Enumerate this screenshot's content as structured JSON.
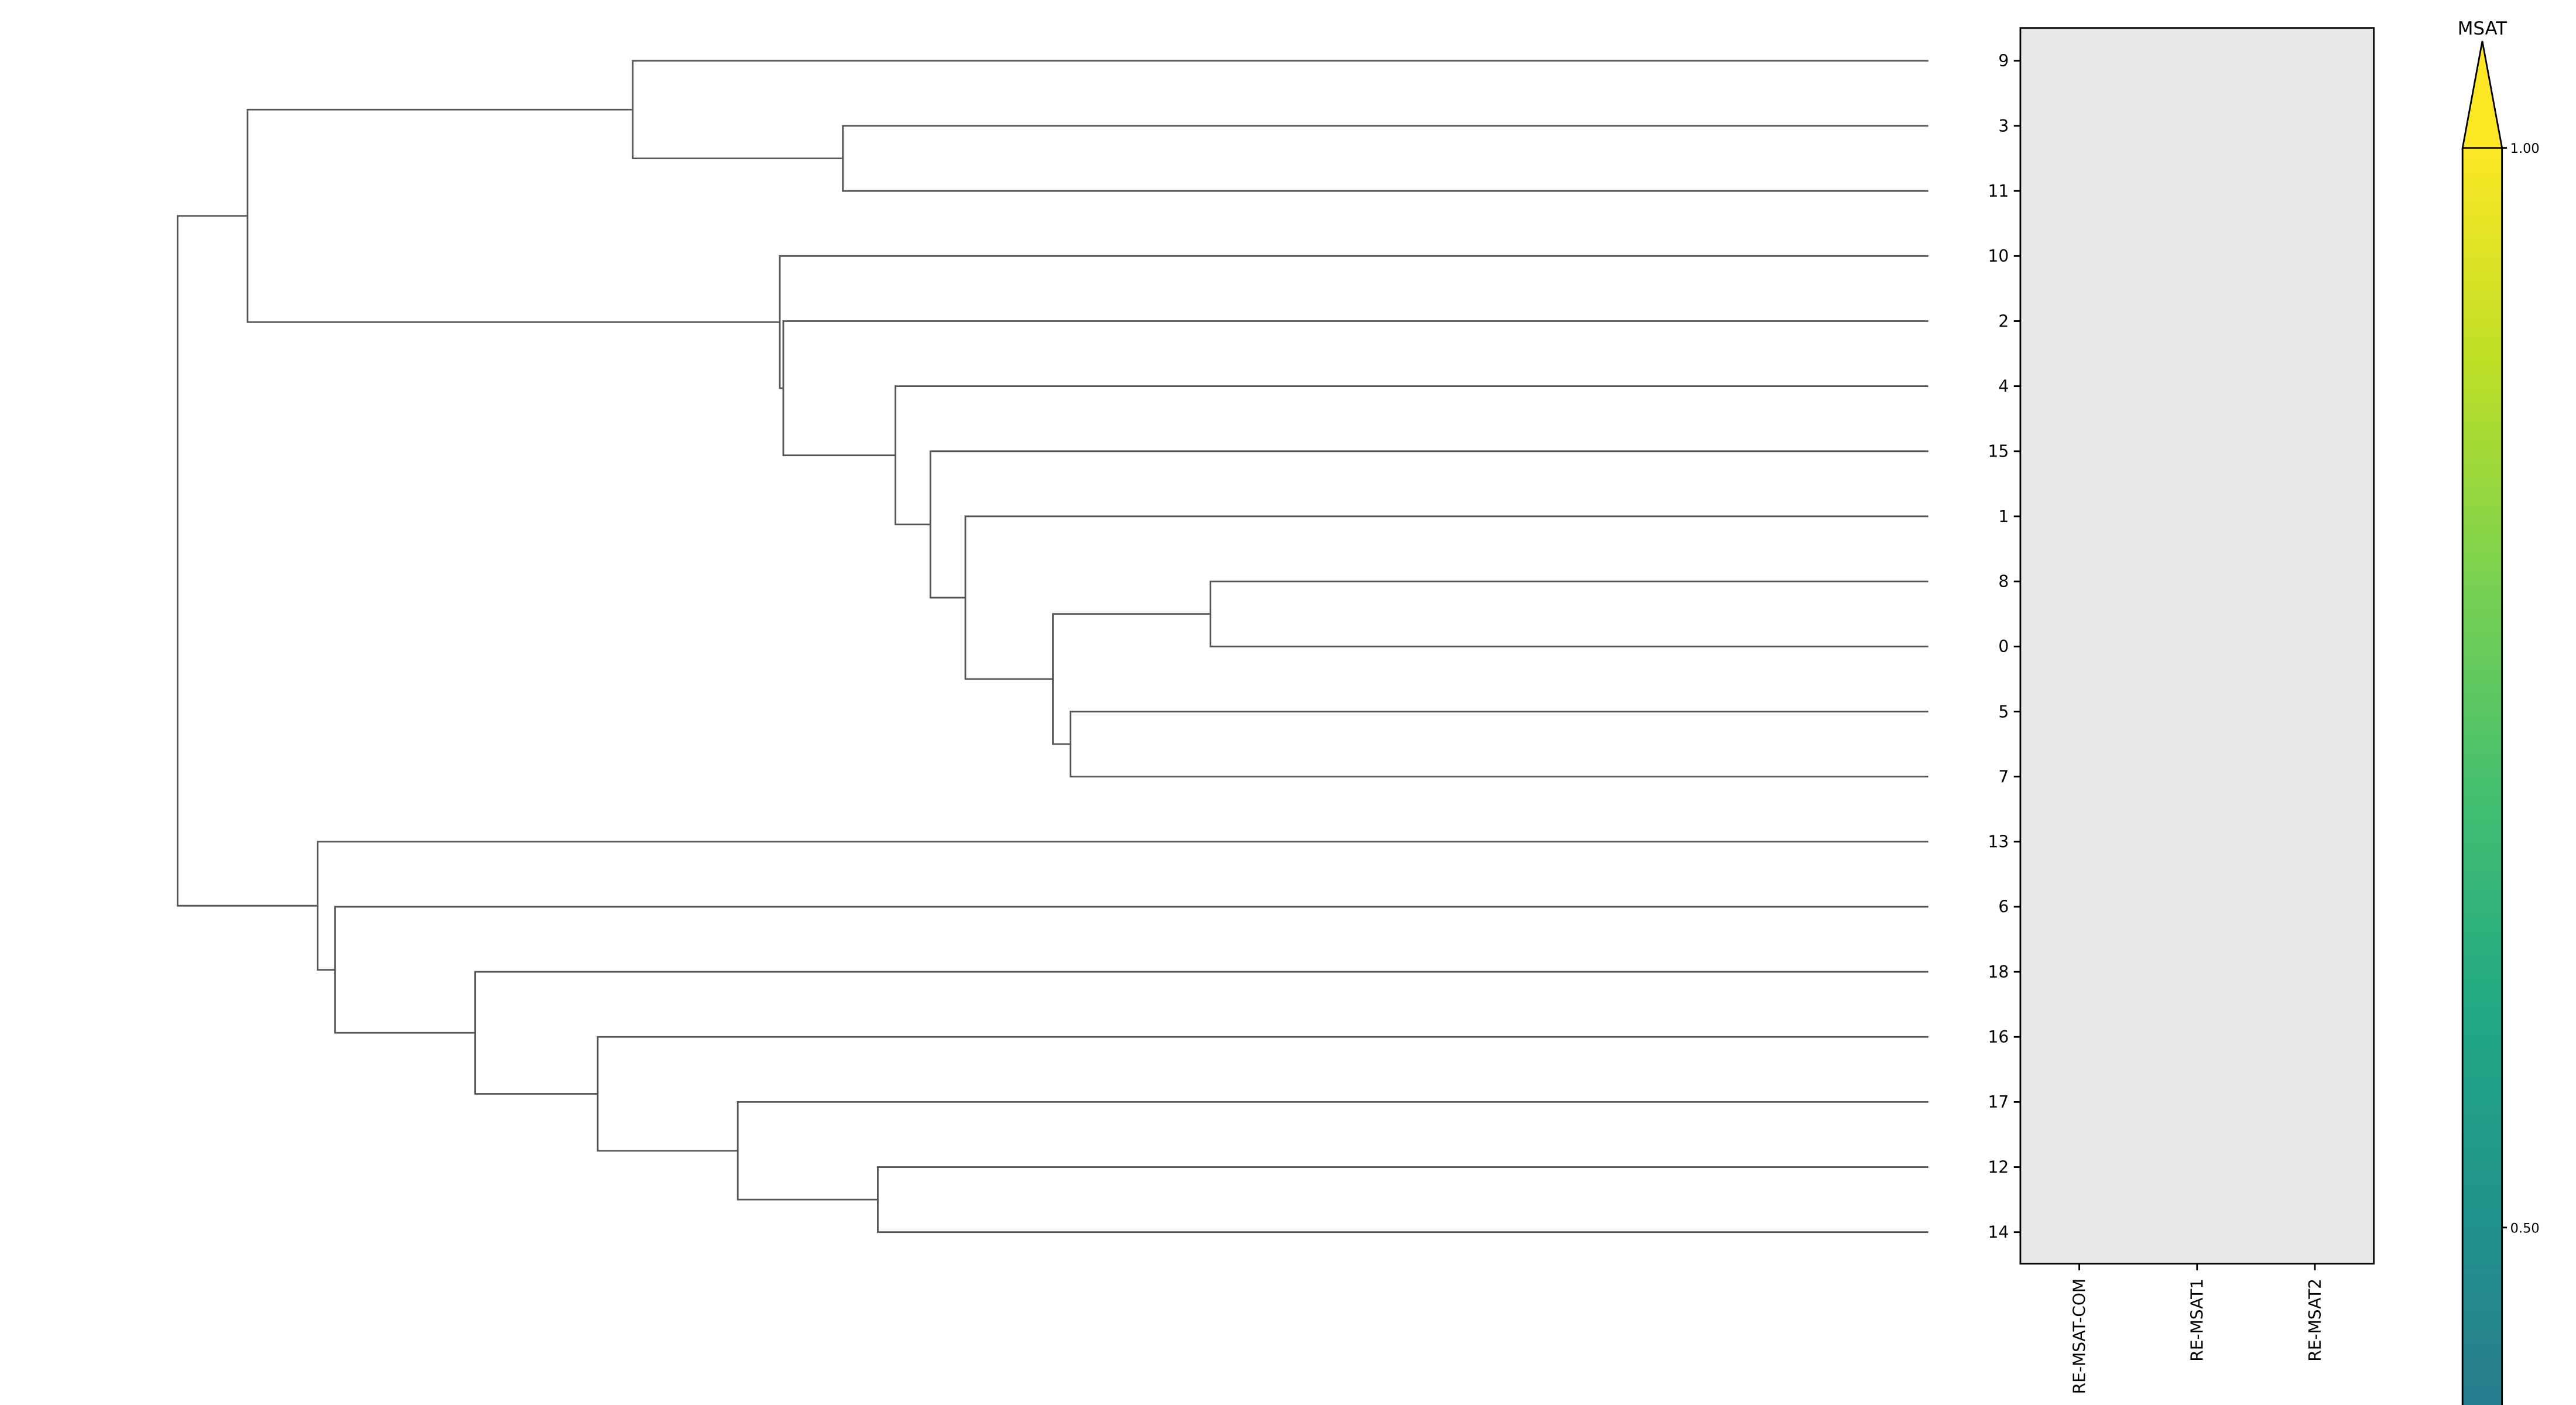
{
  "chart_data": [
    {
      "type": "dendrogram",
      "orientation": "left",
      "leaf_order": [
        "9",
        "3",
        "11",
        "10",
        "2",
        "4",
        "15",
        "1",
        "8",
        "0",
        "5",
        "7",
        "13",
        "6",
        "18",
        "16",
        "17",
        "12",
        "14"
      ],
      "merges": [
        {
          "left": "3",
          "right": "11",
          "height": 0.62
        },
        {
          "left": "9",
          "right": "3|11",
          "height": 0.74
        },
        {
          "left": "8",
          "right": "0",
          "height": 0.41
        },
        {
          "left": "5",
          "right": "7",
          "height": 0.49
        },
        {
          "left": "8|0",
          "right": "5|7",
          "height": 0.5
        },
        {
          "left": "1",
          "right": "8|0|5|7",
          "height": 0.55
        },
        {
          "left": "15",
          "right": "1|8|0|5|7",
          "height": 0.57
        },
        {
          "left": "4",
          "right": "15|1|8|0|5|7",
          "height": 0.59
        },
        {
          "left": "2",
          "right": "4|15|1|8|0|5|7",
          "height": 0.654
        },
        {
          "left": "10",
          "right": "2|4|15|1|8|0|5|7",
          "height": 0.656
        },
        {
          "left": "9|3|11",
          "right": "10|2|4|15|1|8|0|5|7",
          "height": 0.96
        },
        {
          "left": "12",
          "right": "14",
          "height": 0.6
        },
        {
          "left": "17",
          "right": "12|14",
          "height": 0.68
        },
        {
          "left": "16",
          "right": "17|12|14",
          "height": 0.76
        },
        {
          "left": "18",
          "right": "16|17|12|14",
          "height": 0.83
        },
        {
          "left": "6",
          "right": "18|16|17|12|14",
          "height": 0.91
        },
        {
          "left": "13",
          "right": "6|18|16|17|12|14",
          "height": 0.92
        },
        {
          "left": "top",
          "right": "bottom",
          "height": 1.0
        }
      ],
      "line_color": "#555555"
    },
    {
      "type": "heatmap",
      "rows": [
        "9",
        "3",
        "11",
        "10",
        "2",
        "4",
        "15",
        "1",
        "8",
        "0",
        "5",
        "7",
        "13",
        "6",
        "18",
        "16",
        "17",
        "12",
        "14"
      ],
      "columns": [
        "RE-MSAT-COM",
        "RE-MSAT1",
        "RE-MSAT2"
      ],
      "values": "all missing",
      "missing_color": "#e8e8e8",
      "colorbar": {
        "label": "MSAT",
        "colormap": "viridis",
        "range": [
          0,
          1
        ],
        "extend": "max",
        "ticks": [
          {
            "value": 1.0,
            "label": "1.00"
          },
          {
            "value": 0.5,
            "label": "0.50"
          }
        ]
      }
    }
  ]
}
